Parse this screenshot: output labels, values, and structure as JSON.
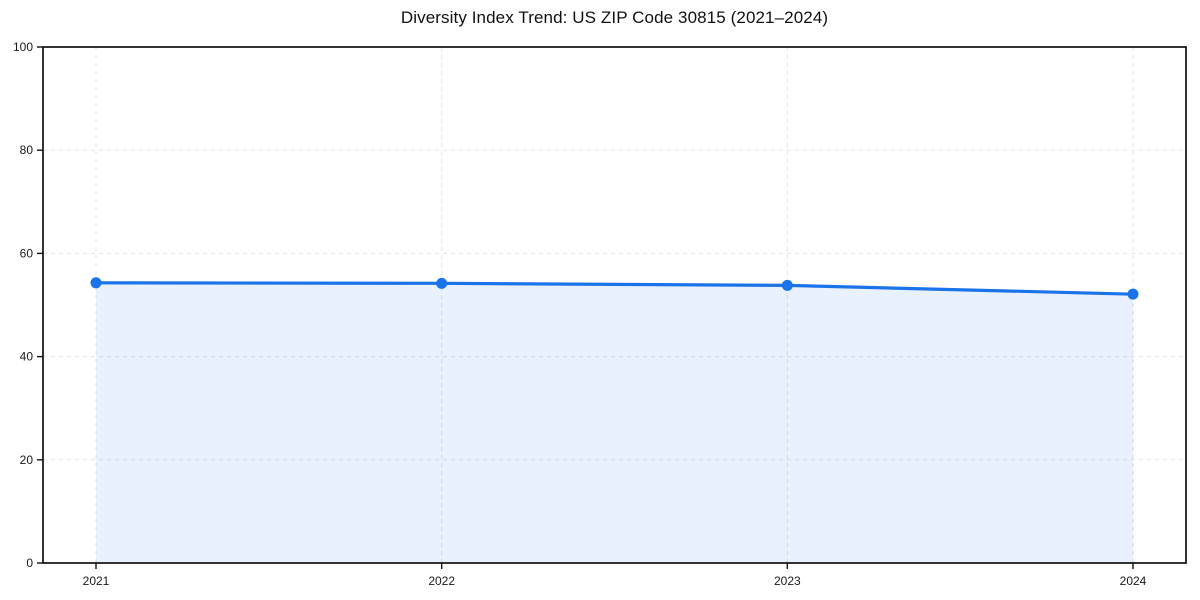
{
  "chart_data": {
    "type": "line",
    "title": "Diversity Index Trend: US ZIP Code 30815 (2021–2024)",
    "x": [
      "2021",
      "2022",
      "2023",
      "2024"
    ],
    "series": [
      {
        "name": "Diversity Index",
        "values": [
          54.3,
          54.2,
          53.8,
          52.1
        ]
      }
    ],
    "xlabel": "",
    "ylabel": "",
    "ylim": [
      0,
      100
    ],
    "yticks": [
      0,
      20,
      40,
      60,
      80,
      100
    ],
    "grid": true,
    "legend": false,
    "colors": {
      "line": "#1a73e8",
      "marker": "#1a73e8",
      "area_fill": "#1a73e8",
      "grid": "#e3e3e3",
      "axis": "#111111",
      "text": "#1a1a1a",
      "background": "#ffffff"
    },
    "style": {
      "grid_dash": "4 4",
      "line_width": 3.2,
      "marker_radius": 5.5,
      "area_opacity": 0.1,
      "fill_between": "first_to_last_x_only"
    }
  }
}
